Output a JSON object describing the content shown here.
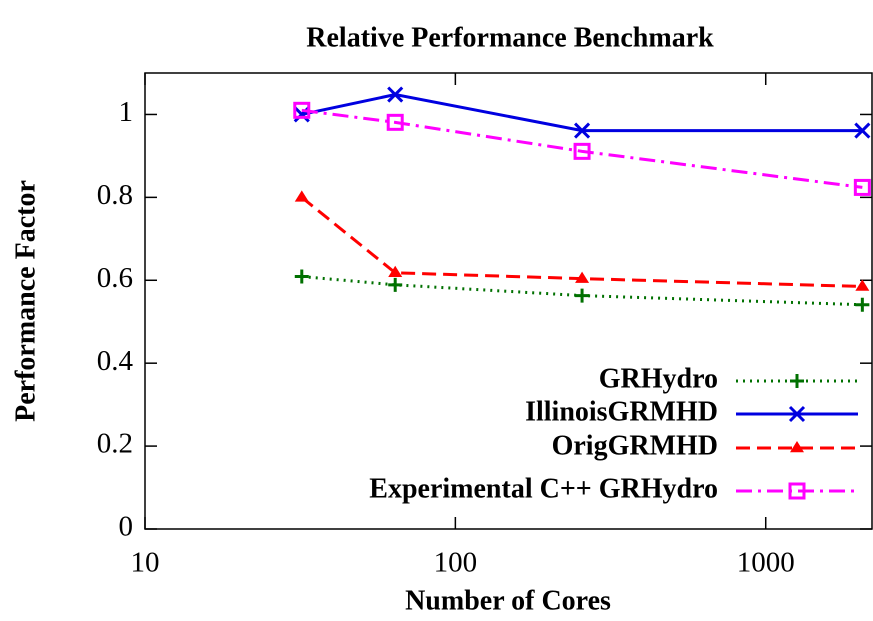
{
  "chart_data": {
    "type": "line",
    "title": "Relative Performance Benchmark",
    "xlabel": "Number of Cores",
    "ylabel": "Performance Factor",
    "x": [
      32,
      64,
      256,
      2048
    ],
    "xscale": "log",
    "xlim": [
      10,
      2200
    ],
    "xticks": [
      10,
      100,
      1000
    ],
    "ylim": [
      0,
      1.1
    ],
    "yticks": [
      0,
      0.2,
      0.4,
      0.6,
      0.8,
      1
    ],
    "legend": "lower right",
    "series": [
      {
        "name": "GRHydro",
        "color": "#007000",
        "dash": "dotted",
        "marker": "plus",
        "values": [
          0.609,
          0.589,
          0.563,
          0.541
        ]
      },
      {
        "name": "IllinoisGRMHD",
        "color": "#0000e0",
        "dash": "solid",
        "marker": "cross",
        "values": [
          1.0,
          1.048,
          0.961,
          0.961
        ]
      },
      {
        "name": "OrigGRMHD",
        "color": "#ff0000",
        "dash": "dashed",
        "marker": "triangle",
        "values": [
          0.8,
          0.618,
          0.604,
          0.585
        ]
      },
      {
        "name": "Experimental C++ GRHydro",
        "color": "#ff00ff",
        "dash": "dashdot",
        "marker": "square",
        "values": [
          1.01,
          0.981,
          0.911,
          0.824
        ]
      }
    ]
  }
}
